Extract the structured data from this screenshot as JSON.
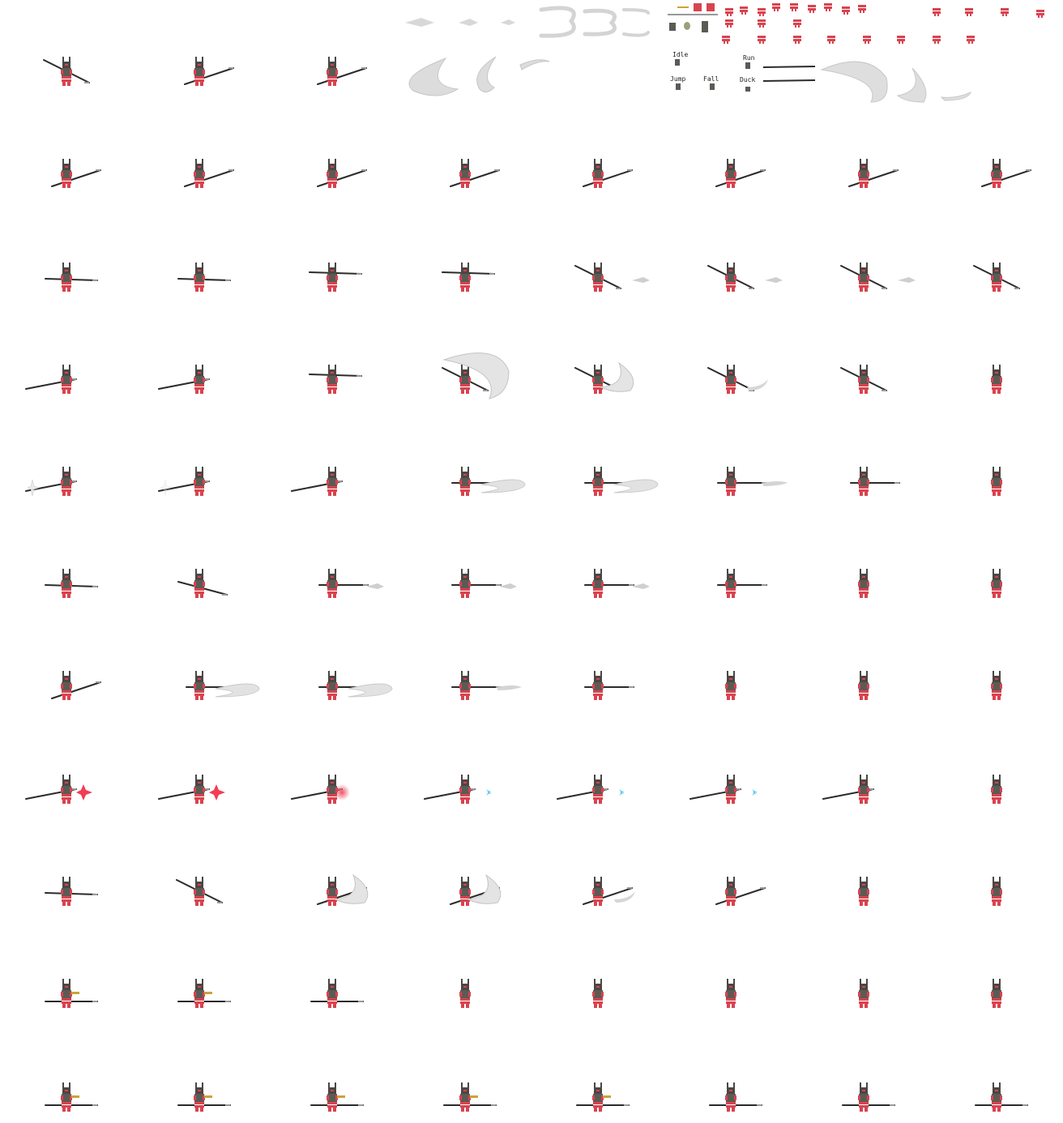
{
  "sheet": {
    "type": "sprite-sheet",
    "background": "#ffffff",
    "palette": {
      "armor_red": "#d9434f",
      "armor_dark": "#5c5a55",
      "hood": "#4a4744",
      "spear": "#2b2b2b",
      "slash": "#cfcfcf",
      "spark_red": "#f23d55",
      "spark_blue": "#5ec9f0",
      "gold": "#c9a43a"
    },
    "legend": {
      "labels": [
        "Idle",
        "Run",
        "Jump",
        "Fall",
        "Duck"
      ]
    },
    "grid": {
      "columns": 8,
      "rows": 11,
      "rows_spec": [
        {
          "frames": [
            {
              "spear": "diag-down",
              "fx": "none"
            },
            {
              "spear": "diag-up",
              "fx": "none"
            },
            {
              "spear": "diag-up",
              "fx": "none"
            }
          ]
        },
        {
          "frames": [
            {
              "spear": "diag-up"
            },
            {
              "spear": "diag-up"
            },
            {
              "spear": "diag-up"
            },
            {
              "spear": "diag-up"
            },
            {
              "spear": "diag-up"
            },
            {
              "spear": "diag-up"
            },
            {
              "spear": "diag-up"
            },
            {
              "spear": "diag-up"
            }
          ]
        },
        {
          "frames": [
            {
              "spear": "flat"
            },
            {
              "spear": "flat"
            },
            {
              "spear": "flat-high"
            },
            {
              "spear": "flat-high"
            },
            {
              "spear": "diag-down",
              "fx": "arrow"
            },
            {
              "spear": "diag-down",
              "fx": "arrow"
            },
            {
              "spear": "diag-down",
              "fx": "arrow"
            },
            {
              "spear": "diag-down"
            }
          ]
        },
        {
          "frames": [
            {
              "spear": "back-up"
            },
            {
              "spear": "back-up"
            },
            {
              "spear": "flat-high"
            },
            {
              "spear": "diag-down",
              "fx": "big-slash"
            },
            {
              "spear": "diag-down",
              "fx": "mid-slash"
            },
            {
              "spear": "diag-down",
              "fx": "small-slash"
            },
            {
              "spear": "diag-down"
            },
            {
              "spear": "none"
            }
          ]
        },
        {
          "frames": [
            {
              "spear": "back-up",
              "fx": "star"
            },
            {
              "spear": "back-up",
              "fx": "star-faint"
            },
            {
              "spear": "back-up"
            },
            {
              "spear": "forward",
              "fx": "thrust-slash"
            },
            {
              "spear": "forward",
              "fx": "thrust-slash"
            },
            {
              "spear": "forward",
              "fx": "thrust-tip"
            },
            {
              "spear": "forward"
            },
            {
              "spear": "none"
            }
          ]
        },
        {
          "frames": [
            {
              "spear": "flat"
            },
            {
              "spear": "diag-down-short"
            },
            {
              "spear": "forward",
              "fx": "arrow"
            },
            {
              "spear": "forward",
              "fx": "arrow"
            },
            {
              "spear": "forward",
              "fx": "arrow"
            },
            {
              "spear": "forward"
            },
            {
              "spear": "none"
            },
            {
              "spear": "none"
            }
          ]
        },
        {
          "frames": [
            {
              "spear": "diag-up"
            },
            {
              "spear": "forward",
              "fx": "thrust-slash"
            },
            {
              "spear": "forward",
              "fx": "thrust-slash"
            },
            {
              "spear": "forward",
              "fx": "thrust-tip"
            },
            {
              "spear": "forward"
            },
            {
              "spear": "none"
            },
            {
              "spear": "none"
            },
            {
              "spear": "none"
            }
          ]
        },
        {
          "frames": [
            {
              "spear": "back-up",
              "fx": "red-spark"
            },
            {
              "spear": "back-up",
              "fx": "red-spark"
            },
            {
              "spear": "back-up",
              "fx": "red-glow"
            },
            {
              "spear": "back-up",
              "fx": "blue-spark"
            },
            {
              "spear": "back-up",
              "fx": "blue-spark"
            },
            {
              "spear": "back-up",
              "fx": "blue-spark"
            },
            {
              "spear": "back-up"
            },
            {
              "spear": "none"
            }
          ]
        },
        {
          "frames": [
            {
              "spear": "flat"
            },
            {
              "spear": "diag-down"
            },
            {
              "spear": "diag-up",
              "fx": "mid-slash"
            },
            {
              "spear": "diag-up",
              "fx": "mid-slash"
            },
            {
              "spear": "diag-up",
              "fx": "small-slash"
            },
            {
              "spear": "diag-up"
            },
            {
              "spear": "none"
            },
            {
              "spear": "none"
            }
          ]
        },
        {
          "frames": [
            {
              "spear": "flat-low",
              "fx": "gold"
            },
            {
              "spear": "flat-low",
              "fx": "gold"
            },
            {
              "spear": "flat-low"
            },
            {
              "spear": "none"
            },
            {
              "spear": "none"
            },
            {
              "spear": "none"
            },
            {
              "spear": "none"
            },
            {
              "spear": "none"
            }
          ]
        },
        {
          "frames": [
            {
              "spear": "flat-low",
              "fx": "gold"
            },
            {
              "spear": "flat-low",
              "fx": "gold"
            },
            {
              "spear": "flat-low",
              "fx": "gold"
            },
            {
              "spear": "flat-low",
              "fx": "gold"
            },
            {
              "spear": "flat-low",
              "fx": "gold"
            },
            {
              "spear": "flat-low"
            },
            {
              "spear": "flat-low"
            },
            {
              "spear": "flat-low"
            }
          ]
        }
      ]
    }
  }
}
